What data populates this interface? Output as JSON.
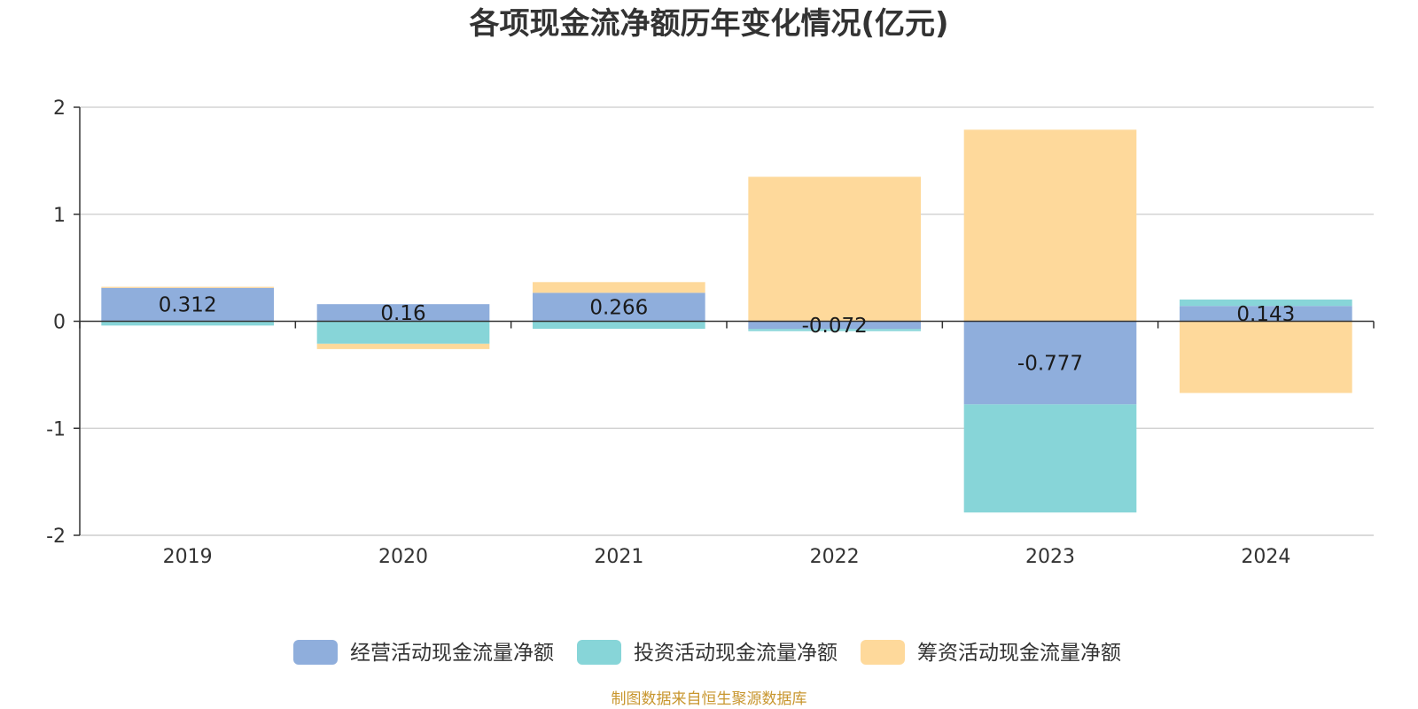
{
  "chart_data": {
    "type": "bar",
    "stacked": true,
    "title": "各项现金流净额历年变化情况(亿元)",
    "categories": [
      "2019",
      "2020",
      "2021",
      "2022",
      "2023",
      "2024"
    ],
    "ylim": [
      -2,
      2
    ],
    "yticks": [
      2,
      1,
      0,
      -1,
      -2
    ],
    "ytick_labels": [
      "2",
      "1",
      "0",
      "-1",
      "-2"
    ],
    "grid": true,
    "legend_position": "bottom",
    "series": [
      {
        "name": "经营活动现金流量净额",
        "color": "#8faedc",
        "values": [
          0.312,
          0.16,
          0.266,
          -0.072,
          -0.777,
          0.143
        ],
        "labels": [
          "0.312",
          "0.16",
          "0.266",
          "-0.072",
          "-0.777",
          "0.143"
        ]
      },
      {
        "name": "投资活动现金流量净额",
        "color": "#87d5d8",
        "values": [
          -0.04,
          -0.21,
          -0.07,
          -0.02,
          -1.01,
          0.06
        ],
        "labels": []
      },
      {
        "name": "筹资活动现金流量净额",
        "color": "#fed99b",
        "values": [
          0.01,
          -0.05,
          0.1,
          1.35,
          1.79,
          -0.67
        ],
        "labels": []
      }
    ]
  },
  "source": {
    "text": "制图数据来自恒生聚源数据库",
    "color": "#c8962e"
  }
}
